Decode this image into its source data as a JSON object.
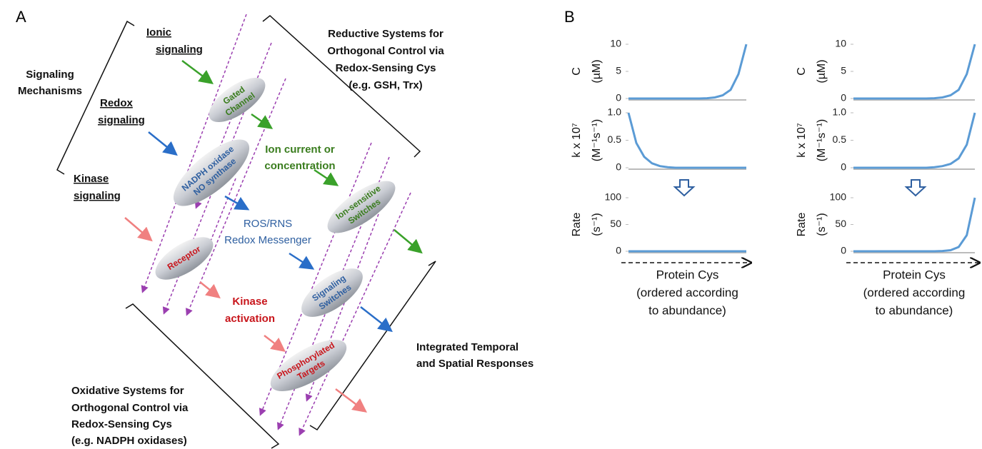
{
  "panel_labels": [
    "A",
    "B"
  ],
  "diagram": {
    "ionic": [
      "Ionic",
      "signaling"
    ],
    "mechanisms": [
      "Signaling",
      "Mechanisms"
    ],
    "redox": [
      "Redox",
      "signaling"
    ],
    "kinase": [
      "Kinase",
      "signaling"
    ],
    "reductive": [
      "Reductive Systems for",
      "Orthogonal Control via",
      "Redox-Sensing Cys",
      "(e.g. GSH, Trx)"
    ],
    "gated": [
      "Gated",
      "Channel"
    ],
    "nadph": [
      "NADPH oxidase",
      "NO synthase"
    ],
    "ion_current": [
      "Ion current or",
      "concentration"
    ],
    "ion_switches": [
      "Ion-sensitive",
      "Switches"
    ],
    "ros": [
      "ROS/RNS",
      "Redox Messenger"
    ],
    "receptor": "Receptor",
    "kinase_activation": [
      "Kinase",
      "activation"
    ],
    "signaling_switches": [
      "Signaling",
      "Switches"
    ],
    "integrated": [
      "Integrated Temporal",
      "and Spatial Responses"
    ],
    "phospho": [
      "Phosphorylated",
      "Targets"
    ],
    "oxidative": [
      "Oxidative Systems for",
      "Orthogonal Control via",
      "Redox-Sensing Cys",
      "(e.g. NADPH oxidases)"
    ]
  },
  "chart_data": [
    {
      "type": "line",
      "ylabel": [
        "C",
        "(µM)"
      ],
      "color": "#5b9bd5",
      "categories": [
        null,
        null,
        null,
        null,
        null,
        null,
        null,
        null,
        null,
        null,
        null,
        null,
        null,
        null,
        null,
        null
      ],
      "values": [
        0,
        0,
        0,
        0,
        0,
        0,
        0,
        0,
        0,
        0,
        0.05,
        0.2,
        0.6,
        1.6,
        4.5,
        10
      ],
      "ylim": [
        0,
        10
      ],
      "yticks": [
        0,
        5,
        10
      ]
    },
    {
      "type": "line",
      "ylabel": [
        "k x 10⁷",
        "(M⁻¹s⁻¹)"
      ],
      "color": "#5b9bd5",
      "categories": [
        null,
        null,
        null,
        null,
        null,
        null,
        null,
        null,
        null,
        null,
        null,
        null,
        null,
        null,
        null,
        null
      ],
      "values": [
        1.0,
        0.45,
        0.2,
        0.08,
        0.03,
        0.01,
        0,
        0,
        0,
        0,
        0,
        0,
        0,
        0,
        0,
        0
      ],
      "ylim": [
        0,
        1
      ],
      "yticks": [
        0,
        0.5,
        {
          "value": 1,
          "label": "1.0"
        }
      ]
    },
    {
      "type": "line",
      "ylabel": [
        "Rate",
        "(s⁻¹)"
      ],
      "color": "#5b9bd5",
      "categories": [
        null,
        null,
        null,
        null,
        null,
        null,
        null,
        null,
        null,
        null,
        null,
        null,
        null,
        null,
        null,
        null
      ],
      "values": [
        0,
        0,
        0,
        0,
        0,
        0,
        0,
        0,
        0,
        0,
        0,
        0,
        0,
        0,
        0,
        0
      ],
      "ylim": [
        0,
        100
      ],
      "yticks": [
        0,
        50,
        100
      ],
      "xlabel": [
        "Protein Cys",
        "(ordered according",
        "to abundance)"
      ]
    },
    {
      "type": "line",
      "ylabel": [
        "C",
        "(µM)"
      ],
      "color": "#5b9bd5",
      "categories": [
        null,
        null,
        null,
        null,
        null,
        null,
        null,
        null,
        null,
        null,
        null,
        null,
        null,
        null,
        null,
        null
      ],
      "values": [
        0,
        0,
        0,
        0,
        0,
        0,
        0,
        0,
        0,
        0,
        0.05,
        0.2,
        0.6,
        1.6,
        4.5,
        10
      ],
      "ylim": [
        0,
        10
      ],
      "yticks": [
        0,
        5,
        10
      ]
    },
    {
      "type": "line",
      "ylabel": [
        "k x 10⁷",
        "(M⁻¹s⁻¹)"
      ],
      "color": "#5b9bd5",
      "categories": [
        null,
        null,
        null,
        null,
        null,
        null,
        null,
        null,
        null,
        null,
        null,
        null,
        null,
        null,
        null,
        null
      ],
      "values": [
        0,
        0,
        0,
        0,
        0,
        0,
        0,
        0,
        0,
        0,
        0.01,
        0.03,
        0.07,
        0.17,
        0.42,
        1.0
      ],
      "ylim": [
        0,
        1
      ],
      "yticks": [
        0,
        0.5,
        {
          "value": 1,
          "label": "1.0"
        }
      ]
    },
    {
      "type": "line",
      "ylabel": [
        "Rate",
        "(s⁻¹)"
      ],
      "color": "#5b9bd5",
      "categories": [
        null,
        null,
        null,
        null,
        null,
        null,
        null,
        null,
        null,
        null,
        null,
        null,
        null,
        null,
        null,
        null
      ],
      "values": [
        0,
        0,
        0,
        0,
        0,
        0,
        0,
        0,
        0,
        0,
        0,
        0.5,
        2,
        8,
        30,
        100
      ],
      "ylim": [
        0,
        100
      ],
      "yticks": [
        0,
        50,
        100
      ],
      "xlabel": [
        "Protein Cys",
        "(ordered according",
        "to abundance)"
      ]
    }
  ]
}
